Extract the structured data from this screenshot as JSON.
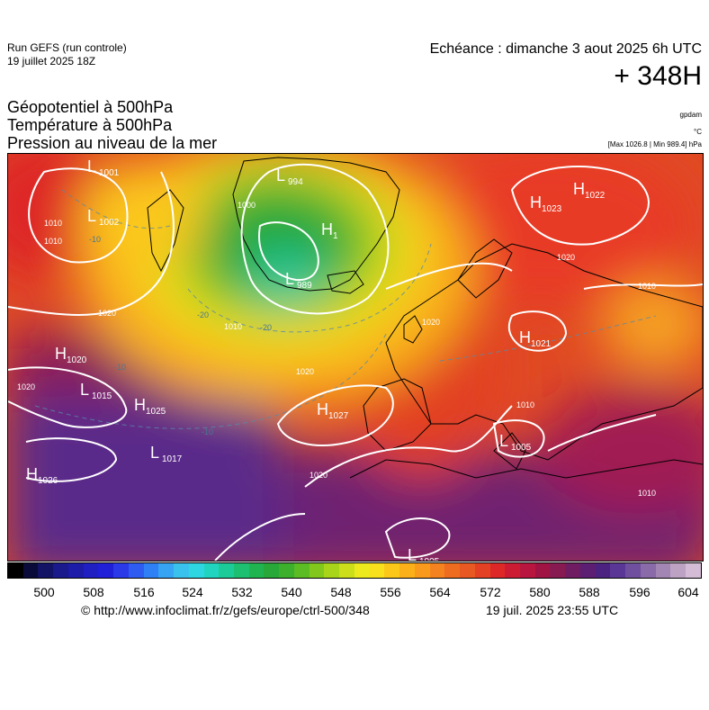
{
  "header": {
    "run_name": "Run GEFS (run controle)",
    "run_date": "19 juillet 2025 18Z",
    "valid_time": "Echéance : dimanche 3 aout 2025 6h UTC",
    "lead_time": "+ 348H"
  },
  "titles": {
    "line1": "Géopotentiel à 500hPa",
    "line2": "Température à 500hPa",
    "line3": "Pression au niveau de la mer"
  },
  "units": {
    "geopotential": "gpdam",
    "temperature": "°C",
    "pressure": "[Max 1026.8 | Min 989.4] hPa"
  },
  "map": {
    "pressure_centers": [
      {
        "type": "L",
        "value": "1001"
      },
      {
        "type": "L",
        "value": "1002"
      },
      {
        "type": "L",
        "value": "994"
      },
      {
        "type": "H",
        "value": "1"
      },
      {
        "type": "L",
        "value": "989"
      },
      {
        "type": "H",
        "value": "1022"
      },
      {
        "type": "H",
        "value": "1023"
      },
      {
        "type": "L",
        "value": "1015"
      },
      {
        "type": "H",
        "value": "1025"
      },
      {
        "type": "H",
        "value": "1027"
      },
      {
        "type": "L",
        "value": "1017"
      },
      {
        "type": "H",
        "value": "1026"
      },
      {
        "type": "H",
        "value": "1021"
      },
      {
        "type": "L",
        "value": "1005"
      },
      {
        "type": "L",
        "value": "1005"
      },
      {
        "type": "H",
        "value": "1020"
      }
    ],
    "isobar_labels": [
      "1010",
      "1000",
      "1010",
      "1020",
      "1020",
      "1020",
      "1020",
      "1010",
      "1020",
      "1010",
      "1020",
      "1010",
      "1010"
    ],
    "isotherm_labels": [
      "-20",
      "-20",
      "-10",
      "-10",
      "-10"
    ]
  },
  "colorbar": {
    "colors": [
      "#000000",
      "#0b0b3a",
      "#141466",
      "#1a1a8c",
      "#1c1ca8",
      "#1f1fc2",
      "#2020d8",
      "#2a3ae8",
      "#2f5cf0",
      "#2f80f4",
      "#36a4f2",
      "#39c2ec",
      "#2dd6e0",
      "#21d4c0",
      "#1ccc98",
      "#1cc070",
      "#20b450",
      "#28a838",
      "#3caf2c",
      "#5cbc24",
      "#82c81c",
      "#a8d41a",
      "#ccde1a",
      "#ecea1c",
      "#f8e11c",
      "#fbc81a",
      "#fbb01a",
      "#fa9a1c",
      "#f4821e",
      "#ee6c20",
      "#e85822",
      "#e44024",
      "#de2828",
      "#cc1c34",
      "#b8163e",
      "#a01444",
      "#881a52",
      "#701c62",
      "#5c1e72",
      "#4c2280",
      "#5a3696",
      "#70509e",
      "#8a6aa8",
      "#a486b4",
      "#bea2c4",
      "#d4bcd6"
    ],
    "ticks": [
      "500",
      "508",
      "516",
      "524",
      "532",
      "540",
      "548",
      "556",
      "564",
      "572",
      "580",
      "588",
      "596",
      "604"
    ]
  },
  "footer": {
    "copyright": "© http://www.infoclimat.fr/z/gefs/europe/ctrl-500/348",
    "generated": "19 juil. 2025 23:55 UTC"
  }
}
